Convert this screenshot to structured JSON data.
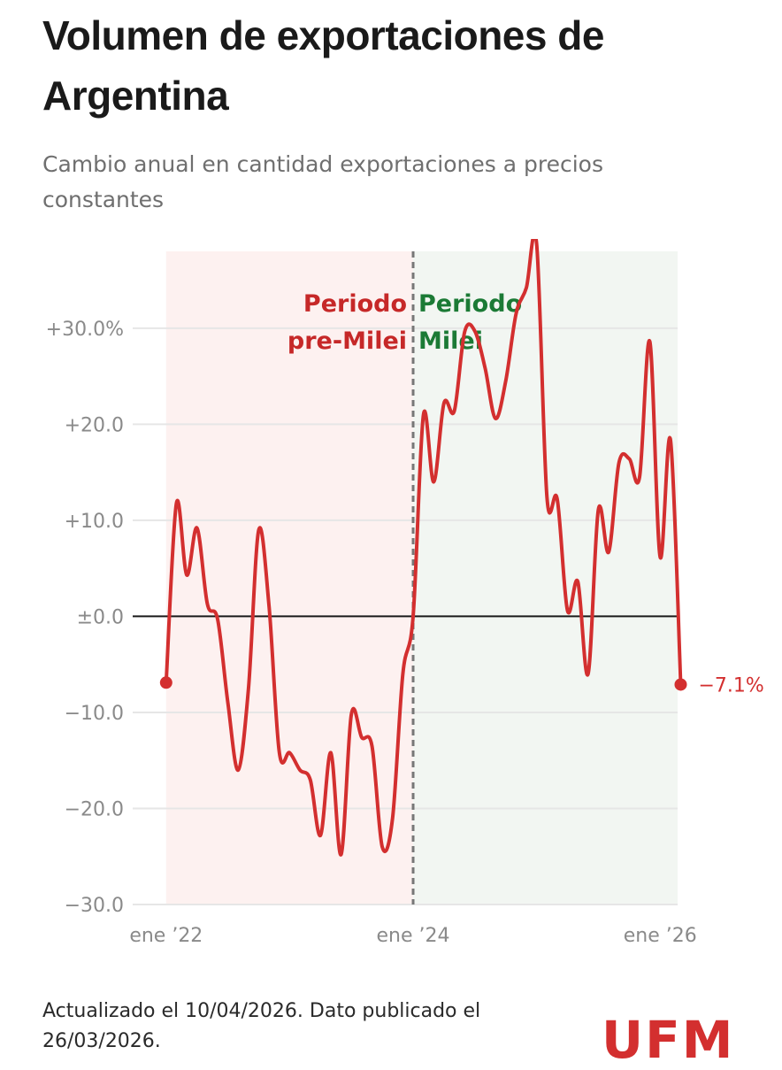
{
  "title": "Volumen de exportaciones de Argentina",
  "subtitle": "Cambio anual en cantidad exportaciones a precios constantes",
  "footer": "Actualizado el 10/04/2026. Dato publicado el 26/03/2026.",
  "logo_text": "UFM",
  "colors": {
    "line": "#d32f2f",
    "pre_milei_bg": "#fdf1f0",
    "milei_bg": "#f2f6f2",
    "pre_milei_text": "#c62828",
    "milei_text": "#1b7a35",
    "zero_line": "#1a1a1a",
    "grid": "#e6e6e6",
    "axis_text": "#8a8a8a",
    "logo": "#d32f2f"
  },
  "chart_data": {
    "type": "line",
    "ylim": [
      -30,
      38
    ],
    "xlim": [
      -0.5,
      49.7
    ],
    "y_ticks": [
      {
        "value": 30,
        "label": "+30.0%"
      },
      {
        "value": 20,
        "label": "+20.0"
      },
      {
        "value": 10,
        "label": "+10.0"
      },
      {
        "value": 0,
        "label": "±0.0"
      },
      {
        "value": -10,
        "label": "−10.0"
      },
      {
        "value": -20,
        "label": "−20.0"
      },
      {
        "value": -30,
        "label": "−30.0"
      }
    ],
    "x_ticks": [
      {
        "index": 0,
        "label": "ene ’22"
      },
      {
        "index": 24,
        "label": "ene ’24"
      },
      {
        "index": 48,
        "label": "ene ’26"
      }
    ],
    "periods": [
      {
        "label_line1": "Periodo",
        "label_line2": "pre-Milei",
        "start_index": 0,
        "end_index": 24
      },
      {
        "label_line1": "Periodo",
        "label_line2": "Milei",
        "start_index": 24,
        "end_index": 49.7
      }
    ],
    "divider_index": 24,
    "series": [
      {
        "values": [
          -6.9,
          11.8,
          4.3,
          9.2,
          1.3,
          -0.3,
          -9.0,
          -16.0,
          -7.5,
          9.0,
          1.0,
          -14.2,
          -14.2,
          -16.0,
          -17.0,
          -22.8,
          -14.2,
          -24.8,
          -10.2,
          -12.6,
          -13.5,
          -24.0,
          -21.0,
          -6.0,
          0.0,
          21.0,
          14.0,
          22.2,
          21.4,
          29.6,
          29.7,
          25.8,
          20.6,
          24.5,
          31.5,
          34.2,
          38.8,
          12.4,
          12.2,
          0.6,
          3.6,
          -6.0,
          11.1,
          6.7,
          16.0,
          16.4,
          14.5,
          28.6,
          6.2,
          18.4,
          -7.1
        ]
      }
    ],
    "end_label": "−7.1%"
  }
}
